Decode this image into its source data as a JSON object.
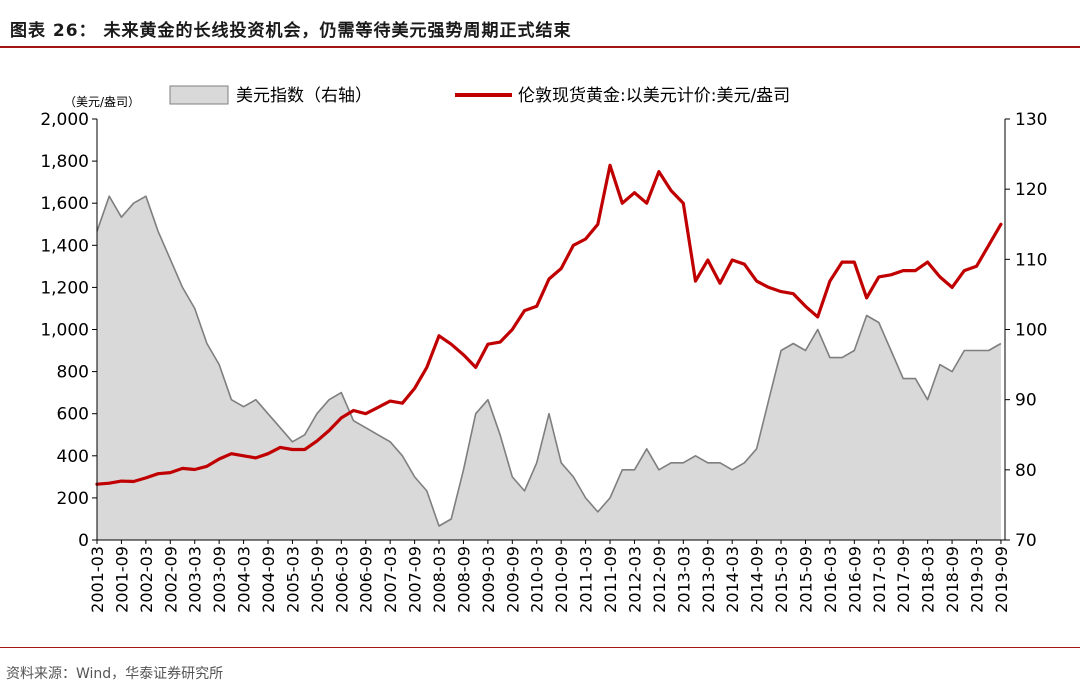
{
  "header": {
    "title": "图表 26：  未来黄金的长线投资机会，仍需等待美元强势周期正式结束"
  },
  "footer": {
    "source": "资料来源：Wind，华泰证券研究所"
  },
  "chart_data": {
    "type": "area",
    "left_unit": "（美元/盎司）",
    "left_axis": {
      "ylim": [
        0,
        2000
      ],
      "ticks": [
        "0",
        "200",
        "400",
        "600",
        "800",
        "1,000",
        "1,200",
        "1,400",
        "1,600",
        "1,800",
        "2,000"
      ]
    },
    "right_axis": {
      "ylim": [
        70,
        130
      ],
      "ticks": [
        "70",
        "80",
        "90",
        "100",
        "110",
        "120",
        "130"
      ]
    },
    "x_ticks": [
      "2001-03",
      "2001-09",
      "2002-03",
      "2002-09",
      "2003-03",
      "2003-09",
      "2004-03",
      "2004-09",
      "2005-03",
      "2005-09",
      "2006-03",
      "2006-09",
      "2007-03",
      "2007-09",
      "2008-03",
      "2008-09",
      "2009-03",
      "2009-09",
      "2010-03",
      "2010-09",
      "2011-03",
      "2011-09",
      "2012-03",
      "2012-09",
      "2013-03",
      "2013-09",
      "2014-03",
      "2014-09",
      "2015-03",
      "2015-09",
      "2016-03",
      "2016-09",
      "2017-03",
      "2017-09",
      "2018-03",
      "2018-09",
      "2019-03",
      "2019-09"
    ],
    "legend_placement": "top",
    "grid": false,
    "series": [
      {
        "name": "美元指数（右轴）",
        "axis": "right",
        "kind": "area",
        "color": "#7f7f7f",
        "fill": "#d9d9d9",
        "x": [
          "2001-03",
          "2001-06",
          "2001-09",
          "2001-12",
          "2002-03",
          "2002-06",
          "2002-09",
          "2002-12",
          "2003-03",
          "2003-06",
          "2003-09",
          "2003-12",
          "2004-03",
          "2004-06",
          "2004-09",
          "2004-12",
          "2005-03",
          "2005-06",
          "2005-09",
          "2005-12",
          "2006-03",
          "2006-06",
          "2006-09",
          "2006-12",
          "2007-03",
          "2007-06",
          "2007-09",
          "2007-12",
          "2008-03",
          "2008-06",
          "2008-09",
          "2008-12",
          "2009-03",
          "2009-06",
          "2009-09",
          "2009-12",
          "2010-03",
          "2010-06",
          "2010-09",
          "2010-12",
          "2011-03",
          "2011-06",
          "2011-09",
          "2011-12",
          "2012-03",
          "2012-06",
          "2012-09",
          "2012-12",
          "2013-03",
          "2013-06",
          "2013-09",
          "2013-12",
          "2014-03",
          "2014-06",
          "2014-09",
          "2014-12",
          "2015-03",
          "2015-06",
          "2015-09",
          "2015-12",
          "2016-03",
          "2016-06",
          "2016-09",
          "2016-12",
          "2017-03",
          "2017-06",
          "2017-09",
          "2017-12",
          "2018-03",
          "2018-06",
          "2018-09",
          "2018-12",
          "2019-03",
          "2019-06",
          "2019-09"
        ],
        "values": [
          114,
          119,
          116,
          118,
          119,
          114,
          110,
          106,
          103,
          98,
          95,
          90,
          89,
          90,
          88,
          86,
          84,
          85,
          88,
          90,
          91,
          87,
          86,
          85,
          84,
          82,
          79,
          77,
          72,
          73,
          80,
          88,
          90,
          85,
          79,
          77,
          81,
          88,
          81,
          79,
          76,
          74,
          76,
          80,
          80,
          83,
          80,
          81,
          81,
          82,
          81,
          81,
          80,
          81,
          83,
          90,
          97,
          98,
          97,
          100,
          96,
          96,
          97,
          102,
          101,
          97,
          93,
          93,
          90,
          95,
          94,
          97,
          97,
          97,
          98
        ]
      },
      {
        "name": "伦敦现货黄金:以美元计价:美元/盎司",
        "axis": "left",
        "kind": "line",
        "color": "#c00000",
        "x": [
          "2001-03",
          "2001-06",
          "2001-09",
          "2001-12",
          "2002-03",
          "2002-06",
          "2002-09",
          "2002-12",
          "2003-03",
          "2003-06",
          "2003-09",
          "2003-12",
          "2004-03",
          "2004-06",
          "2004-09",
          "2004-12",
          "2005-03",
          "2005-06",
          "2005-09",
          "2005-12",
          "2006-03",
          "2006-06",
          "2006-09",
          "2006-12",
          "2007-03",
          "2007-06",
          "2007-09",
          "2007-12",
          "2008-03",
          "2008-06",
          "2008-09",
          "2008-12",
          "2009-03",
          "2009-06",
          "2009-09",
          "2009-12",
          "2010-03",
          "2010-06",
          "2010-09",
          "2010-12",
          "2011-03",
          "2011-06",
          "2011-09",
          "2011-12",
          "2012-03",
          "2012-06",
          "2012-09",
          "2012-12",
          "2013-03",
          "2013-06",
          "2013-09",
          "2013-12",
          "2014-03",
          "2014-06",
          "2014-09",
          "2014-12",
          "2015-03",
          "2015-06",
          "2015-09",
          "2015-12",
          "2016-03",
          "2016-06",
          "2016-09",
          "2016-12",
          "2017-03",
          "2017-06",
          "2017-09",
          "2017-12",
          "2018-03",
          "2018-06",
          "2018-09",
          "2018-12",
          "2019-03",
          "2019-06",
          "2019-09"
        ],
        "values": [
          265,
          270,
          280,
          278,
          295,
          315,
          320,
          340,
          335,
          350,
          385,
          410,
          400,
          390,
          410,
          440,
          430,
          430,
          470,
          520,
          580,
          615,
          600,
          630,
          660,
          650,
          720,
          820,
          970,
          930,
          880,
          820,
          930,
          940,
          1000,
          1090,
          1110,
          1240,
          1290,
          1400,
          1430,
          1500,
          1780,
          1600,
          1650,
          1600,
          1750,
          1660,
          1600,
          1230,
          1330,
          1220,
          1330,
          1310,
          1230,
          1200,
          1180,
          1170,
          1110,
          1060,
          1230,
          1320,
          1320,
          1150,
          1250,
          1260,
          1280,
          1280,
          1320,
          1250,
          1200,
          1280,
          1300,
          1400,
          1500
        ]
      }
    ]
  }
}
